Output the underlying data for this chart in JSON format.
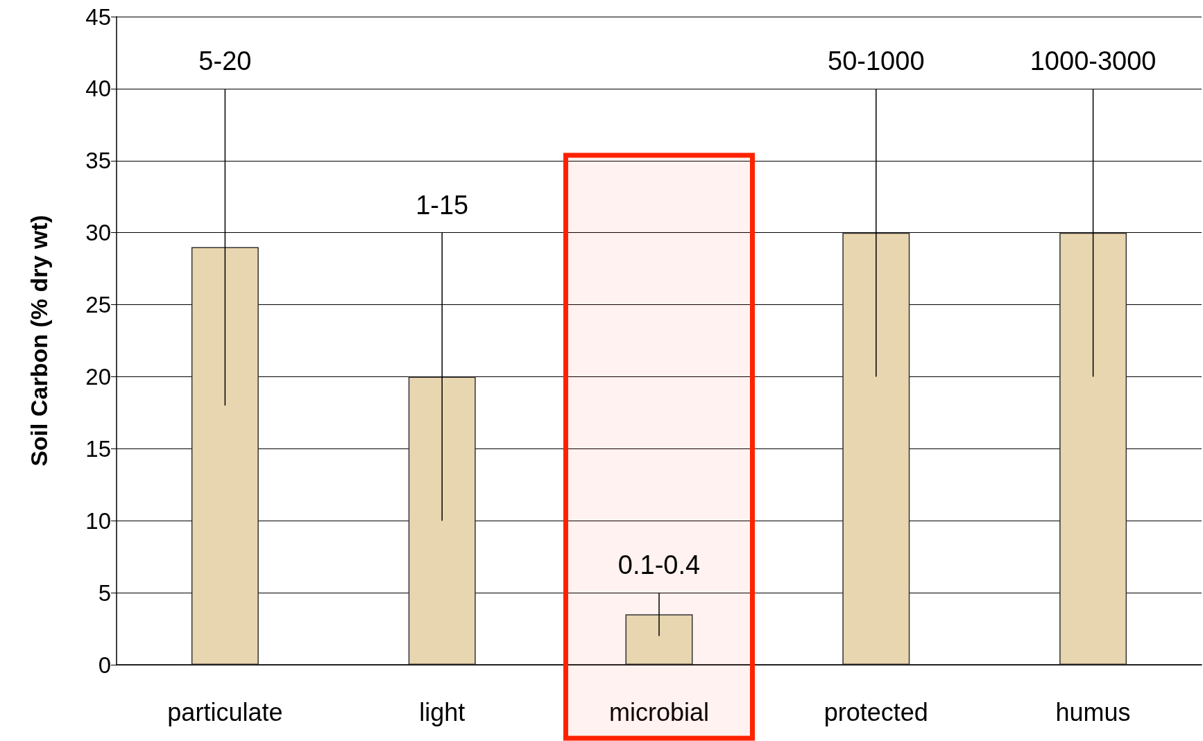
{
  "chart_data": {
    "type": "bar",
    "ylabel": "Soil Carbon (% dry wt)",
    "categories": [
      "particulate",
      "light",
      "microbial",
      "protected",
      "humus"
    ],
    "values": [
      29,
      20,
      3.5,
      30,
      30
    ],
    "errors": [
      [
        18,
        40
      ],
      [
        10,
        30
      ],
      [
        2,
        5
      ],
      [
        20,
        40
      ],
      [
        20,
        40
      ]
    ],
    "color": "#e8d6b0",
    "ylim": [
      0,
      45
    ],
    "yticks": [
      0,
      5,
      10,
      15,
      20,
      25,
      30,
      35,
      40,
      45
    ],
    "grid": "y",
    "annotations": [
      "5-20",
      "1-15",
      "0.1-0.4",
      "50-1000",
      "1000-3000"
    ],
    "bands": [
      {
        "axis": "x",
        "from": "microbial",
        "to": "microbial",
        "color": "#ff2200"
      }
    ]
  }
}
